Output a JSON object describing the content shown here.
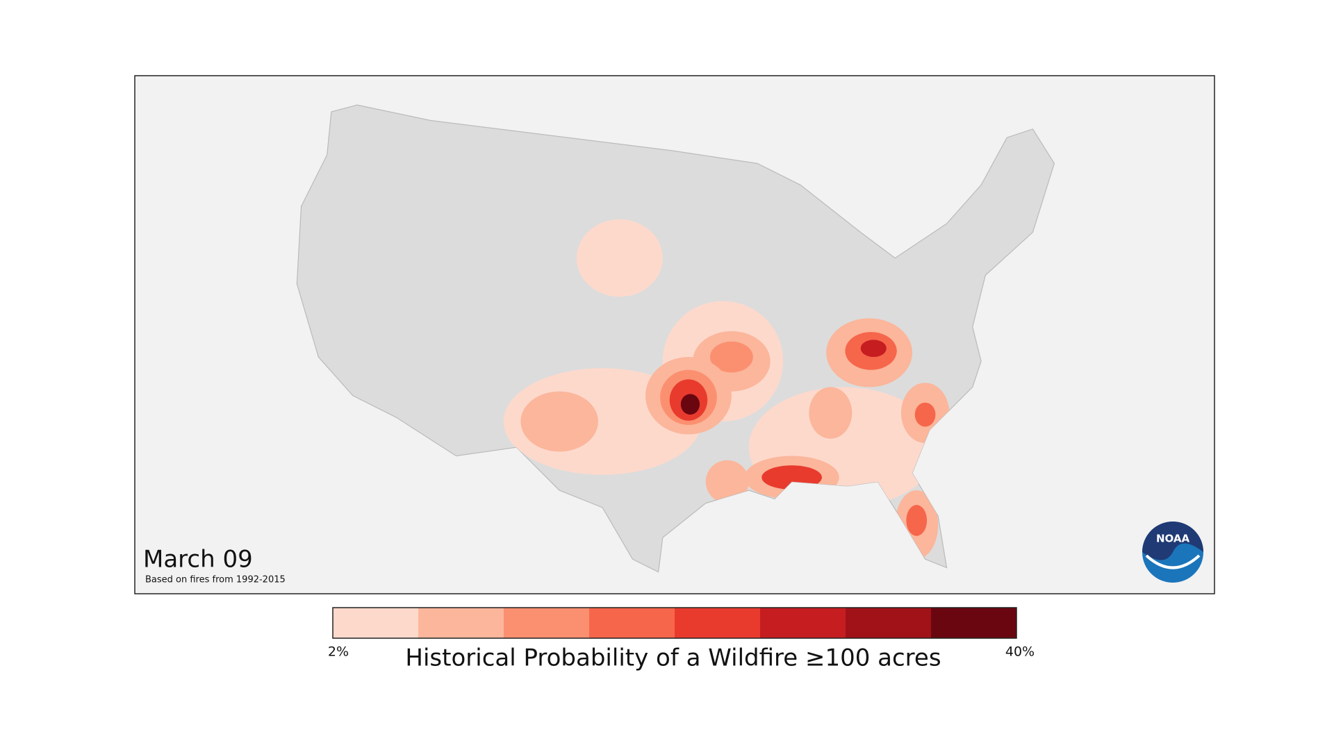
{
  "map": {
    "date": "March 09",
    "note": "Based on fires from 1992-2015",
    "logo": "NOAA"
  },
  "legend": {
    "title": "Historical Probability of a Wildfire ≥100 acres",
    "min_label": "2%",
    "max_label": "40%",
    "colors": [
      "#fdd9cc",
      "#fbb69b",
      "#fb9071",
      "#f6664b",
      "#e83b2e",
      "#c61d21",
      "#a01218",
      "#6a0610"
    ]
  }
}
